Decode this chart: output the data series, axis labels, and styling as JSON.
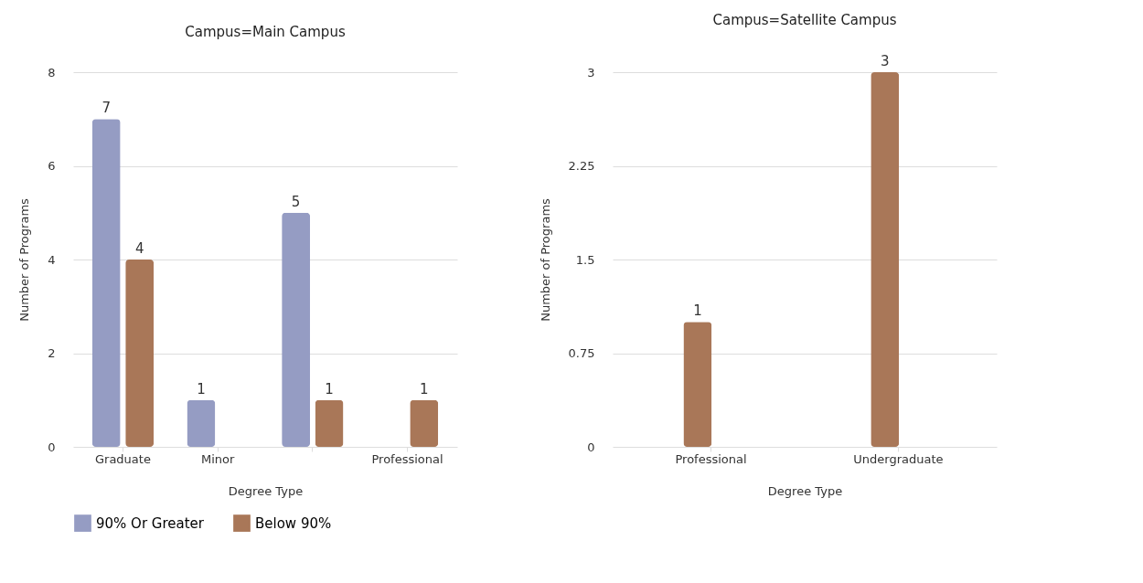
{
  "chart_data": [
    {
      "type": "bar",
      "title": "Campus=Main Campus",
      "xlabel": "Degree Type",
      "ylabel": "Number of Programs",
      "categories": [
        "Graduate",
        "Minor",
        null,
        "Professional"
      ],
      "series": [
        {
          "name": "90% Or Greater",
          "color": "#959cc3",
          "values": [
            7,
            1,
            5,
            null
          ]
        },
        {
          "name": "Below 90%",
          "color": "#a97758",
          "values": [
            4,
            null,
            1,
            1
          ]
        }
      ],
      "ylim": [
        0,
        8
      ],
      "yticks": [
        0,
        2,
        4,
        6,
        8
      ],
      "grid": "y",
      "legend": "bottom",
      "data_labels": true
    },
    {
      "type": "bar",
      "title": "Campus=Satellite Campus",
      "xlabel": "Degree Type",
      "ylabel": "Number of Programs",
      "categories": [
        "Professional",
        "Undergraduate"
      ],
      "series": [
        {
          "name": "Below 90%",
          "color": "#a97758",
          "values": [
            1,
            3
          ]
        }
      ],
      "ylim": [
        0,
        3
      ],
      "yticks": [
        0,
        0.75,
        1.5,
        2.25,
        3
      ],
      "grid": "y",
      "legend": "bottom",
      "data_labels": true
    }
  ]
}
